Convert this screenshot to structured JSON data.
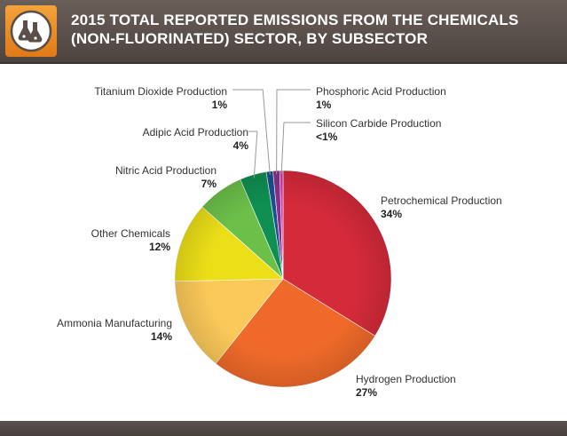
{
  "title_line1": "2015 TOTAL REPORTED EMISSIONS FROM THE CHEMICALS",
  "title_line2": "(NON-FLUORINATED) SECTOR, BY SUBSECTOR",
  "icon": "chemistry-flasks-icon",
  "chart_data": {
    "type": "pie",
    "title": "2015 TOTAL REPORTED EMISSIONS FROM THE CHEMICALS (NON-FLUORINATED) SECTOR, BY SUBSECTOR",
    "unit": "%",
    "slices": [
      {
        "label": "Petrochemical Production",
        "value": 34,
        "display": "34%",
        "color": "#d42a3a"
      },
      {
        "label": "Hydrogen Production",
        "value": 27,
        "display": "27%",
        "color": "#ef6a2a"
      },
      {
        "label": "Ammonia Manufacturing",
        "value": 14,
        "display": "14%",
        "color": "#fbc95a"
      },
      {
        "label": "Other Chemicals",
        "value": 12,
        "display": "12%",
        "color": "#ecdf18"
      },
      {
        "label": "Nitric Acid Production",
        "value": 7,
        "display": "7%",
        "color": "#6cc04a"
      },
      {
        "label": "Adipic Acid Production",
        "value": 4,
        "display": "4%",
        "color": "#0f8f52"
      },
      {
        "label": "Titanium Dioxide Production",
        "value": 1,
        "display": "1%",
        "color": "#1a5090"
      },
      {
        "label": "Phosphoric Acid Production",
        "value": 1,
        "display": "1%",
        "color": "#8a2f8a"
      },
      {
        "label": "Silicon Carbide Production",
        "value": 0.5,
        "display": "<1%",
        "color": "#d23ab4"
      }
    ]
  }
}
